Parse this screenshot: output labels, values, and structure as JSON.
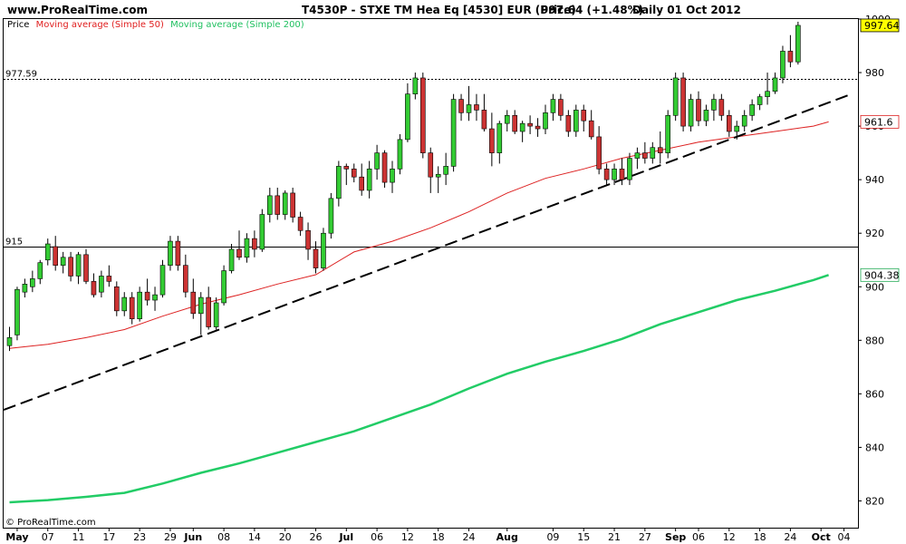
{
  "header": {
    "site": "www.ProRealTime.com",
    "instrument": "T4530P - STXE TM Hea Eq [4530] EUR (Price)",
    "last_value": "997.64 (+1.48%)",
    "period": "Daily  01 Oct 2012"
  },
  "legend": [
    {
      "label": "Price",
      "color": "#000000"
    },
    {
      "label": "Moving average (Simple 50)",
      "color": "#e02020"
    },
    {
      "label": "Moving average (Simple 200)",
      "color": "#20c060"
    }
  ],
  "footer_brand": "© ProRealTime.com",
  "colors": {
    "up": "#33cc33",
    "down": "#cc3333",
    "ma50": "#dd2222",
    "ma200": "#22cc66",
    "trend": "#000000",
    "highlight": "#ffff00"
  },
  "chart_data": {
    "type": "candlestick",
    "ylim": [
      810,
      1000
    ],
    "y_ticks": [
      "820",
      "840",
      "860",
      "880",
      "900",
      "920",
      "940",
      "960",
      "980",
      "1000"
    ],
    "x_ticks": [
      {
        "label": "May",
        "bold": true,
        "i": 1
      },
      {
        "label": "07",
        "bold": false,
        "i": 5
      },
      {
        "label": "11",
        "bold": false,
        "i": 9
      },
      {
        "label": "17",
        "bold": false,
        "i": 13
      },
      {
        "label": "23",
        "bold": false,
        "i": 17
      },
      {
        "label": "29",
        "bold": false,
        "i": 21
      },
      {
        "label": "Jun",
        "bold": true,
        "i": 24
      },
      {
        "label": "08",
        "bold": false,
        "i": 28
      },
      {
        "label": "14",
        "bold": false,
        "i": 32
      },
      {
        "label": "20",
        "bold": false,
        "i": 36
      },
      {
        "label": "26",
        "bold": false,
        "i": 40
      },
      {
        "label": "Jul",
        "bold": true,
        "i": 44
      },
      {
        "label": "06",
        "bold": false,
        "i": 48
      },
      {
        "label": "12",
        "bold": false,
        "i": 52
      },
      {
        "label": "18",
        "bold": false,
        "i": 56
      },
      {
        "label": "24",
        "bold": false,
        "i": 60
      },
      {
        "label": "Aug",
        "bold": true,
        "i": 65
      },
      {
        "label": "09",
        "bold": false,
        "i": 71
      },
      {
        "label": "15",
        "bold": false,
        "i": 75
      },
      {
        "label": "21",
        "bold": false,
        "i": 79
      },
      {
        "label": "27",
        "bold": false,
        "i": 83
      },
      {
        "label": "Sep",
        "bold": true,
        "i": 87
      },
      {
        "label": "06",
        "bold": false,
        "i": 90
      },
      {
        "label": "12",
        "bold": false,
        "i": 94
      },
      {
        "label": "18",
        "bold": false,
        "i": 98
      },
      {
        "label": "24",
        "bold": false,
        "i": 102
      },
      {
        "label": "Oct",
        "bold": true,
        "i": 106
      },
      {
        "label": "04",
        "bold": false,
        "i": 109
      }
    ],
    "hlines": [
      {
        "value": 977.59,
        "label": "977.59",
        "style": "dotted"
      },
      {
        "value": 915,
        "label": "915",
        "style": "solid"
      }
    ],
    "value_labels": [
      {
        "value": 997.64,
        "label": "997.64",
        "color": "#000000",
        "background": "#ffff00"
      },
      {
        "value": 961.6,
        "label": "961.6",
        "color": "#dd2222",
        "background": "#ffffff"
      },
      {
        "value": 904.38,
        "label": "904.38",
        "color": "#22aa55",
        "background": "#ffffff"
      }
    ],
    "trendline": {
      "from": [
        0,
        854
      ],
      "to": [
        110,
        972
      ]
    },
    "candles": [
      [
        878,
        885,
        876,
        881
      ],
      [
        882,
        900,
        880,
        899
      ],
      [
        898,
        903,
        896,
        901
      ],
      [
        900,
        906,
        898,
        903
      ],
      [
        903,
        910,
        901,
        909
      ],
      [
        910,
        918,
        908,
        916
      ],
      [
        915,
        919,
        906,
        908
      ],
      [
        908,
        913,
        905,
        911
      ],
      [
        911,
        913,
        902,
        904
      ],
      [
        904,
        913,
        901,
        912
      ],
      [
        912,
        914,
        901,
        902
      ],
      [
        902,
        905,
        896,
        897
      ],
      [
        898,
        906,
        896,
        904
      ],
      [
        904,
        908,
        900,
        902
      ],
      [
        900,
        902,
        889,
        891
      ],
      [
        891,
        898,
        889,
        896
      ],
      [
        896,
        898,
        886,
        888
      ],
      [
        888,
        900,
        887,
        898
      ],
      [
        898,
        903,
        893,
        895
      ],
      [
        895,
        900,
        891,
        897
      ],
      [
        897,
        910,
        896,
        908
      ],
      [
        908,
        919,
        906,
        917
      ],
      [
        917,
        919,
        906,
        908
      ],
      [
        908,
        912,
        896,
        898
      ],
      [
        898,
        903,
        888,
        890
      ],
      [
        890,
        898,
        882,
        896
      ],
      [
        896,
        900,
        884,
        885
      ],
      [
        885,
        896,
        884,
        894
      ],
      [
        894,
        908,
        893,
        906
      ],
      [
        906,
        916,
        905,
        914
      ],
      [
        914,
        921,
        910,
        911
      ],
      [
        911,
        920,
        909,
        918
      ],
      [
        918,
        921,
        911,
        914
      ],
      [
        914,
        929,
        913,
        927
      ],
      [
        927,
        937,
        924,
        934
      ],
      [
        934,
        937,
        925,
        927
      ],
      [
        927,
        936,
        925,
        935
      ],
      [
        935,
        937,
        924,
        926
      ],
      [
        926,
        928,
        919,
        921
      ],
      [
        921,
        924,
        910,
        914
      ],
      [
        914,
        917,
        905,
        907
      ],
      [
        907,
        922,
        906,
        920
      ],
      [
        920,
        935,
        918,
        933
      ],
      [
        933,
        947,
        930,
        945
      ],
      [
        945,
        946,
        938,
        944
      ],
      [
        944,
        946,
        939,
        941
      ],
      [
        941,
        946,
        934,
        936
      ],
      [
        936,
        947,
        933,
        944
      ],
      [
        944,
        953,
        940,
        950
      ],
      [
        950,
        951,
        937,
        939
      ],
      [
        939,
        947,
        935,
        944
      ],
      [
        944,
        957,
        942,
        955
      ],
      [
        955,
        976,
        954,
        972
      ],
      [
        972,
        980,
        970,
        978
      ],
      [
        978,
        980,
        948,
        950
      ],
      [
        950,
        952,
        935,
        941
      ],
      [
        941,
        945,
        935,
        942
      ],
      [
        942,
        950,
        938,
        945
      ],
      [
        945,
        972,
        943,
        970
      ],
      [
        970,
        972,
        962,
        965
      ],
      [
        965,
        975,
        962,
        968
      ],
      [
        968,
        972,
        962,
        966
      ],
      [
        966,
        972,
        958,
        959
      ],
      [
        959,
        965,
        945,
        950
      ],
      [
        950,
        962,
        946,
        961
      ],
      [
        961,
        966,
        958,
        964
      ],
      [
        964,
        966,
        957,
        958
      ],
      [
        958,
        962,
        954,
        961
      ],
      [
        961,
        964,
        957,
        960
      ],
      [
        960,
        963,
        956,
        959
      ],
      [
        959,
        968,
        957,
        965
      ],
      [
        965,
        972,
        962,
        970
      ],
      [
        970,
        972,
        962,
        964
      ],
      [
        964,
        966,
        956,
        958
      ],
      [
        958,
        968,
        956,
        966
      ],
      [
        966,
        968,
        958,
        962
      ],
      [
        962,
        966,
        955,
        956
      ],
      [
        956,
        960,
        942,
        944
      ],
      [
        944,
        946,
        938,
        940
      ],
      [
        940,
        946,
        938,
        944
      ],
      [
        944,
        948,
        938,
        940
      ],
      [
        940,
        950,
        938,
        948
      ],
      [
        948,
        952,
        944,
        950
      ],
      [
        950,
        954,
        946,
        948
      ],
      [
        948,
        954,
        946,
        952
      ],
      [
        952,
        958,
        946,
        950
      ],
      [
        950,
        966,
        948,
        964
      ],
      [
        964,
        980,
        962,
        978
      ],
      [
        978,
        980,
        958,
        960
      ],
      [
        960,
        972,
        958,
        970
      ],
      [
        970,
        973,
        960,
        962
      ],
      [
        962,
        968,
        960,
        966
      ],
      [
        966,
        972,
        962,
        970
      ],
      [
        970,
        972,
        962,
        964
      ],
      [
        964,
        966,
        956,
        958
      ],
      [
        958,
        962,
        955,
        960
      ],
      [
        960,
        966,
        958,
        964
      ],
      [
        964,
        970,
        962,
        968
      ],
      [
        968,
        972,
        966,
        971
      ],
      [
        971,
        980,
        968,
        973
      ],
      [
        973,
        980,
        972,
        978
      ],
      [
        978,
        990,
        976,
        988
      ],
      [
        988,
        994,
        982,
        984
      ],
      [
        984,
        999,
        983,
        997.64
      ]
    ],
    "ma50": [
      [
        0,
        877
      ],
      [
        5,
        878.5
      ],
      [
        10,
        881
      ],
      [
        15,
        884
      ],
      [
        20,
        889
      ],
      [
        25,
        893.5
      ],
      [
        30,
        897
      ],
      [
        35,
        901
      ],
      [
        40,
        904.5
      ],
      [
        45,
        913
      ],
      [
        50,
        917
      ],
      [
        55,
        922
      ],
      [
        60,
        928
      ],
      [
        65,
        935
      ],
      [
        70,
        940.5
      ],
      [
        75,
        944
      ],
      [
        80,
        948
      ],
      [
        85,
        951
      ],
      [
        90,
        954
      ],
      [
        95,
        956
      ],
      [
        100,
        958
      ],
      [
        105,
        960
      ],
      [
        107,
        961.6
      ]
    ],
    "ma200": [
      [
        0,
        819.5
      ],
      [
        5,
        820.3
      ],
      [
        10,
        821.5
      ],
      [
        15,
        823
      ],
      [
        20,
        826.5
      ],
      [
        25,
        830.5
      ],
      [
        30,
        834
      ],
      [
        35,
        838
      ],
      [
        40,
        842
      ],
      [
        45,
        846
      ],
      [
        50,
        851
      ],
      [
        55,
        856
      ],
      [
        60,
        862
      ],
      [
        65,
        867.5
      ],
      [
        70,
        872
      ],
      [
        75,
        876
      ],
      [
        80,
        880.5
      ],
      [
        85,
        886
      ],
      [
        90,
        890.5
      ],
      [
        95,
        895
      ],
      [
        100,
        898.5
      ],
      [
        105,
        902.5
      ],
      [
        107,
        904.38
      ]
    ]
  }
}
